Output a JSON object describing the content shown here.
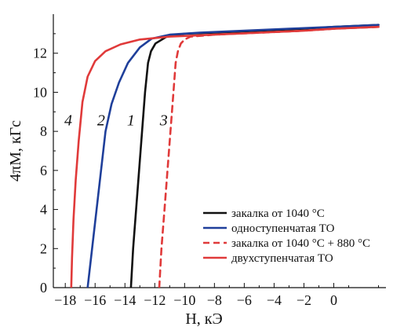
{
  "chart_data": {
    "type": "line",
    "title": "",
    "xlabel": "H, кЭ",
    "ylabel": "4πM, кГс",
    "xlim": [
      -18.8,
      3.5
    ],
    "ylim": [
      0,
      14.0
    ],
    "x_ticks": [
      -18,
      -16,
      -14,
      -12,
      -10,
      -8,
      -6,
      -4,
      -2,
      0
    ],
    "y_ticks": [
      0,
      2,
      4,
      6,
      8,
      10,
      12
    ],
    "grid": false,
    "legend_placement": "bottom-right",
    "series": [
      {
        "name": "закалка от 1040 °C",
        "curve_label": "1",
        "color": "#111111",
        "dash": "solid",
        "points": [
          [
            -13.6,
            0
          ],
          [
            -13.45,
            2
          ],
          [
            -13.25,
            4
          ],
          [
            -13.05,
            6
          ],
          [
            -12.85,
            8
          ],
          [
            -12.65,
            10
          ],
          [
            -12.45,
            11.5
          ],
          [
            -12.25,
            12.1
          ],
          [
            -11.95,
            12.5
          ],
          [
            -11.2,
            12.85
          ],
          [
            -10.0,
            13.0
          ],
          [
            -8.0,
            13.05
          ],
          [
            -5.0,
            13.15
          ],
          [
            -2.0,
            13.25
          ],
          [
            0.0,
            13.35
          ],
          [
            3.0,
            13.45
          ]
        ]
      },
      {
        "name": "одноступенчатая ТО",
        "curve_label": "2",
        "color": "#1f3f9a",
        "dash": "solid",
        "points": [
          [
            -16.5,
            0
          ],
          [
            -16.2,
            2
          ],
          [
            -15.9,
            4
          ],
          [
            -15.6,
            6
          ],
          [
            -15.3,
            8
          ],
          [
            -14.9,
            9.4
          ],
          [
            -14.4,
            10.5
          ],
          [
            -13.8,
            11.5
          ],
          [
            -13.0,
            12.3
          ],
          [
            -12.2,
            12.75
          ],
          [
            -11.0,
            12.95
          ],
          [
            -9.0,
            13.05
          ],
          [
            -6.0,
            13.15
          ],
          [
            -3.0,
            13.25
          ],
          [
            0.0,
            13.35
          ],
          [
            3.0,
            13.45
          ]
        ]
      },
      {
        "name": "закалка от 1040 °C + 880 °C",
        "curve_label": "3",
        "color": "#e03a3a",
        "dash": "dashed",
        "points": [
          [
            -11.7,
            0
          ],
          [
            -11.55,
            2
          ],
          [
            -11.35,
            4
          ],
          [
            -11.15,
            6
          ],
          [
            -10.95,
            8
          ],
          [
            -10.75,
            10
          ],
          [
            -10.6,
            11.5
          ],
          [
            -10.45,
            12.1
          ],
          [
            -10.25,
            12.5
          ],
          [
            -10.0,
            12.7
          ],
          [
            -9.6,
            12.85
          ],
          [
            -8.0,
            12.95
          ],
          [
            -5.0,
            13.05
          ],
          [
            -2.0,
            13.15
          ],
          [
            0.0,
            13.25
          ],
          [
            3.0,
            13.35
          ]
        ]
      },
      {
        "name": "двухступенчатая ТО",
        "curve_label": "4",
        "color": "#e03a3a",
        "dash": "solid",
        "points": [
          [
            -17.6,
            0
          ],
          [
            -17.55,
            1.5
          ],
          [
            -17.45,
            3.5
          ],
          [
            -17.3,
            5.5
          ],
          [
            -17.1,
            7.5
          ],
          [
            -16.85,
            9.5
          ],
          [
            -16.5,
            10.8
          ],
          [
            -16.0,
            11.6
          ],
          [
            -15.3,
            12.1
          ],
          [
            -14.3,
            12.45
          ],
          [
            -13.0,
            12.7
          ],
          [
            -11.0,
            12.85
          ],
          [
            -8.0,
            12.95
          ],
          [
            -5.0,
            13.05
          ],
          [
            -2.0,
            13.15
          ],
          [
            0.0,
            13.25
          ],
          [
            3.0,
            13.35
          ]
        ]
      }
    ],
    "curve_labels_positions": [
      {
        "text": "4",
        "x": -17.8,
        "y": 8.3
      },
      {
        "text": "2",
        "x": -15.6,
        "y": 8.3
      },
      {
        "text": "1",
        "x": -13.6,
        "y": 8.3
      },
      {
        "text": "3",
        "x": -11.4,
        "y": 8.3
      }
    ]
  }
}
